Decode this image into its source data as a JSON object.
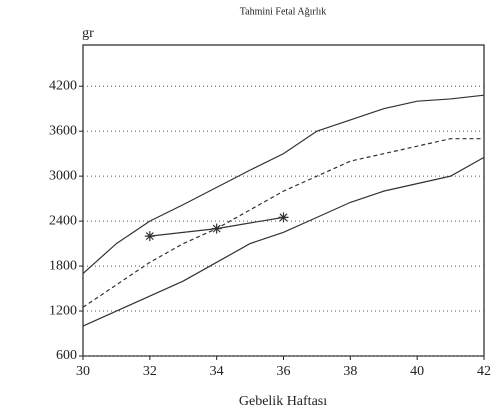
{
  "chart_data": {
    "type": "line",
    "title": "Tahmini Fetal Ağırlık",
    "ylabel": "gr",
    "xlabel": "Gebelik Haftası",
    "x": [
      30,
      31,
      32,
      33,
      34,
      35,
      36,
      37,
      38,
      39,
      40,
      41,
      42
    ],
    "series": [
      {
        "color": "#333333",
        "values": [
          1700,
          2100,
          2400,
          2620,
          2850,
          3080,
          3300,
          3600,
          3750,
          3900,
          4000,
          4030,
          4080
        ]
      },
      {
        "color": "#333333",
        "dashed": true,
        "values": [
          1250,
          1550,
          1850,
          2100,
          2300,
          2550,
          2800,
          3000,
          3200,
          3300,
          3400,
          3500,
          3500
        ]
      },
      {
        "color": "#333333",
        "values": [
          1000,
          1200,
          1400,
          1600,
          1850,
          2100,
          2250,
          2450,
          2650,
          2800,
          2900,
          3000,
          3250
        ]
      },
      {
        "color": "#333333",
        "marker": "star",
        "x": [
          32,
          34,
          36
        ],
        "values": [
          2200,
          2300,
          2450
        ]
      }
    ],
    "xlim": [
      30,
      42
    ],
    "xticks": [
      30,
      32,
      34,
      36,
      38,
      40,
      42
    ],
    "ylim": [
      600,
      4750
    ],
    "yticks": [
      600,
      1200,
      1800,
      2400,
      3000,
      3600,
      4200
    ],
    "grid": true
  }
}
